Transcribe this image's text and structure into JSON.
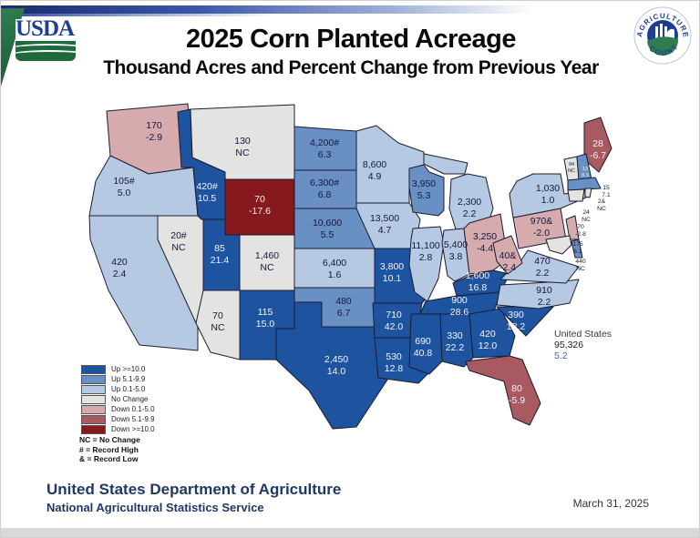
{
  "header": {
    "title": "2025 Corn Planted Acreage",
    "subtitle": "Thousand Acres and Percent Change from Previous Year"
  },
  "logos": {
    "usda_text": "USDA",
    "ag_counts_top": "AGRICULTURE",
    "ag_counts_bottom": "COUNTS"
  },
  "chart_data": {
    "type": "choropleth-map",
    "title": "2025 Corn Planted Acreage",
    "subtitle": "Thousand Acres and Percent Change from Previous Year",
    "units": "thousand acres; percent change from previous year",
    "us_total": {
      "label": "United States",
      "value": "95,326",
      "pct": "5.2"
    },
    "states": [
      {
        "id": "WA",
        "name": "Washington",
        "value": "170",
        "pct": "-2.9",
        "category": "down1"
      },
      {
        "id": "OR",
        "name": "Oregon",
        "value": "105#",
        "pct": "5.0",
        "category": "up1"
      },
      {
        "id": "CA",
        "name": "California",
        "value": "420",
        "pct": "2.4",
        "category": "up1"
      },
      {
        "id": "NV",
        "name": "Nevada",
        "value": "20#",
        "pct": "NC",
        "category": "nc"
      },
      {
        "id": "ID",
        "name": "Idaho",
        "value": "420#",
        "pct": "10.5",
        "category": "up10"
      },
      {
        "id": "MT",
        "name": "Montana",
        "value": "130",
        "pct": "NC",
        "category": "nc"
      },
      {
        "id": "WY",
        "name": "Wyoming",
        "value": "70",
        "pct": "-17.6",
        "category": "down10"
      },
      {
        "id": "UT",
        "name": "Utah",
        "value": "85",
        "pct": "21.4",
        "category": "up10"
      },
      {
        "id": "CO",
        "name": "Colorado",
        "value": "1,460",
        "pct": "NC",
        "category": "nc"
      },
      {
        "id": "AZ",
        "name": "Arizona",
        "value": "70",
        "pct": "NC",
        "category": "nc"
      },
      {
        "id": "NM",
        "name": "New Mexico",
        "value": "115",
        "pct": "15.0",
        "category": "up10"
      },
      {
        "id": "ND",
        "name": "North Dakota",
        "value": "4,200#",
        "pct": "6.3",
        "category": "up5"
      },
      {
        "id": "SD",
        "name": "South Dakota",
        "value": "6,300#",
        "pct": "6.8",
        "category": "up5"
      },
      {
        "id": "NE",
        "name": "Nebraska",
        "value": "10,600",
        "pct": "5.5",
        "category": "up5"
      },
      {
        "id": "KS",
        "name": "Kansas",
        "value": "6,400",
        "pct": "1.6",
        "category": "up1"
      },
      {
        "id": "OK",
        "name": "Oklahoma",
        "value": "480",
        "pct": "6.7",
        "category": "up5"
      },
      {
        "id": "TX",
        "name": "Texas",
        "value": "2,450",
        "pct": "14.0",
        "category": "up10"
      },
      {
        "id": "MN",
        "name": "Minnesota",
        "value": "8,600",
        "pct": "4.9",
        "category": "up1"
      },
      {
        "id": "IA",
        "name": "Iowa",
        "value": "13,500",
        "pct": "4.7",
        "category": "up1"
      },
      {
        "id": "MO",
        "name": "Missouri",
        "value": "3,800",
        "pct": "10.1",
        "category": "up10"
      },
      {
        "id": "AR",
        "name": "Arkansas",
        "value": "710",
        "pct": "42.0",
        "category": "up10"
      },
      {
        "id": "LA",
        "name": "Louisiana",
        "value": "530",
        "pct": "12.8",
        "category": "up10"
      },
      {
        "id": "WI",
        "name": "Wisconsin",
        "value": "3,950",
        "pct": "5.3",
        "category": "up5"
      },
      {
        "id": "IL",
        "name": "Illinois",
        "value": "11,100",
        "pct": "2.8",
        "category": "up1"
      },
      {
        "id": "MI",
        "name": "Michigan",
        "value": "2,300",
        "pct": "2.2",
        "category": "up1"
      },
      {
        "id": "IN",
        "name": "Indiana",
        "value": "5,400",
        "pct": "3.8",
        "category": "up1"
      },
      {
        "id": "OH",
        "name": "Ohio",
        "value": "3,250",
        "pct": "-4.4",
        "category": "down1"
      },
      {
        "id": "KY",
        "name": "Kentucky",
        "value": "1,600",
        "pct": "16.8",
        "category": "up10"
      },
      {
        "id": "TN",
        "name": "Tennessee",
        "value": "900",
        "pct": "28.6",
        "category": "up10"
      },
      {
        "id": "MS",
        "name": "Mississippi",
        "value": "690",
        "pct": "40.8",
        "category": "up10"
      },
      {
        "id": "AL",
        "name": "Alabama",
        "value": "330",
        "pct": "22.2",
        "category": "up10"
      },
      {
        "id": "GA",
        "name": "Georgia",
        "value": "420",
        "pct": "12.0",
        "category": "up10"
      },
      {
        "id": "SC",
        "name": "South Carolina",
        "value": "390",
        "pct": "18.2",
        "category": "up10"
      },
      {
        "id": "NC",
        "name": "North Carolina",
        "value": "910",
        "pct": "2.2",
        "category": "up1"
      },
      {
        "id": "VA",
        "name": "Virginia",
        "value": "470",
        "pct": "2.2",
        "category": "up1"
      },
      {
        "id": "WV",
        "name": "West Virginia",
        "value": "40&",
        "pct": "-2.4",
        "category": "down1"
      },
      {
        "id": "PA",
        "name": "Pennsylvania",
        "value": "970&",
        "pct": "-2.0",
        "category": "down1"
      },
      {
        "id": "NY",
        "name": "New York",
        "value": "1,030",
        "pct": "1.0",
        "category": "up1"
      },
      {
        "id": "FL",
        "name": "Florida",
        "value": "80",
        "pct": "-5.9",
        "category": "down5"
      },
      {
        "id": "ME",
        "name": "Maine",
        "value": "28",
        "pct": "-6.7",
        "category": "down5"
      },
      {
        "id": "VT",
        "name": "Vermont",
        "value": "94",
        "pct": "NC",
        "category": "nc"
      },
      {
        "id": "NH",
        "name": "New Hampshire",
        "value": "13",
        "pct": "8.3",
        "category": "up5"
      },
      {
        "id": "MA",
        "name": "Massachusetts",
        "value": "15",
        "pct": "7.1",
        "category": "up5"
      },
      {
        "id": "RI",
        "name": "Rhode Island",
        "value": "2&",
        "pct": "NC",
        "category": "nc"
      },
      {
        "id": "CT",
        "name": "Connecticut",
        "value": "24",
        "pct": "NC",
        "category": "nc"
      },
      {
        "id": "NJ",
        "name": "New Jersey",
        "value": "70",
        "pct": "-2.8",
        "category": "down1"
      },
      {
        "id": "DE",
        "name": "Delaware",
        "value": "175",
        "pct": "6.1",
        "category": "up5"
      },
      {
        "id": "MD",
        "name": "Maryland",
        "value": "440",
        "pct": "NC",
        "category": "nc"
      }
    ]
  },
  "legend": {
    "items": [
      {
        "label": "Up >=10.0",
        "category": "up10",
        "color": "#1e53a0"
      },
      {
        "label": "Up 5.1-9.9",
        "category": "up5",
        "color": "#6890c5"
      },
      {
        "label": "Up 0.1-5.0",
        "category": "up1",
        "color": "#b6c9e2"
      },
      {
        "label": "No Change",
        "category": "nc",
        "color": "#e3e3e1"
      },
      {
        "label": "Down 0.1-5.0",
        "category": "down1",
        "color": "#d6abae"
      },
      {
        "label": "Down 5.1-9.9",
        "category": "down5",
        "color": "#a85a60"
      },
      {
        "label": "Down >=10.0",
        "category": "down10",
        "color": "#86191e"
      }
    ],
    "footnotes": [
      "NC = No Change",
      "# = Record High",
      "& = Record Low"
    ]
  },
  "footer": {
    "agency": "United States Department of Agriculture",
    "service": "National Agricultural Statistics Service",
    "date": "March 31, 2025"
  }
}
